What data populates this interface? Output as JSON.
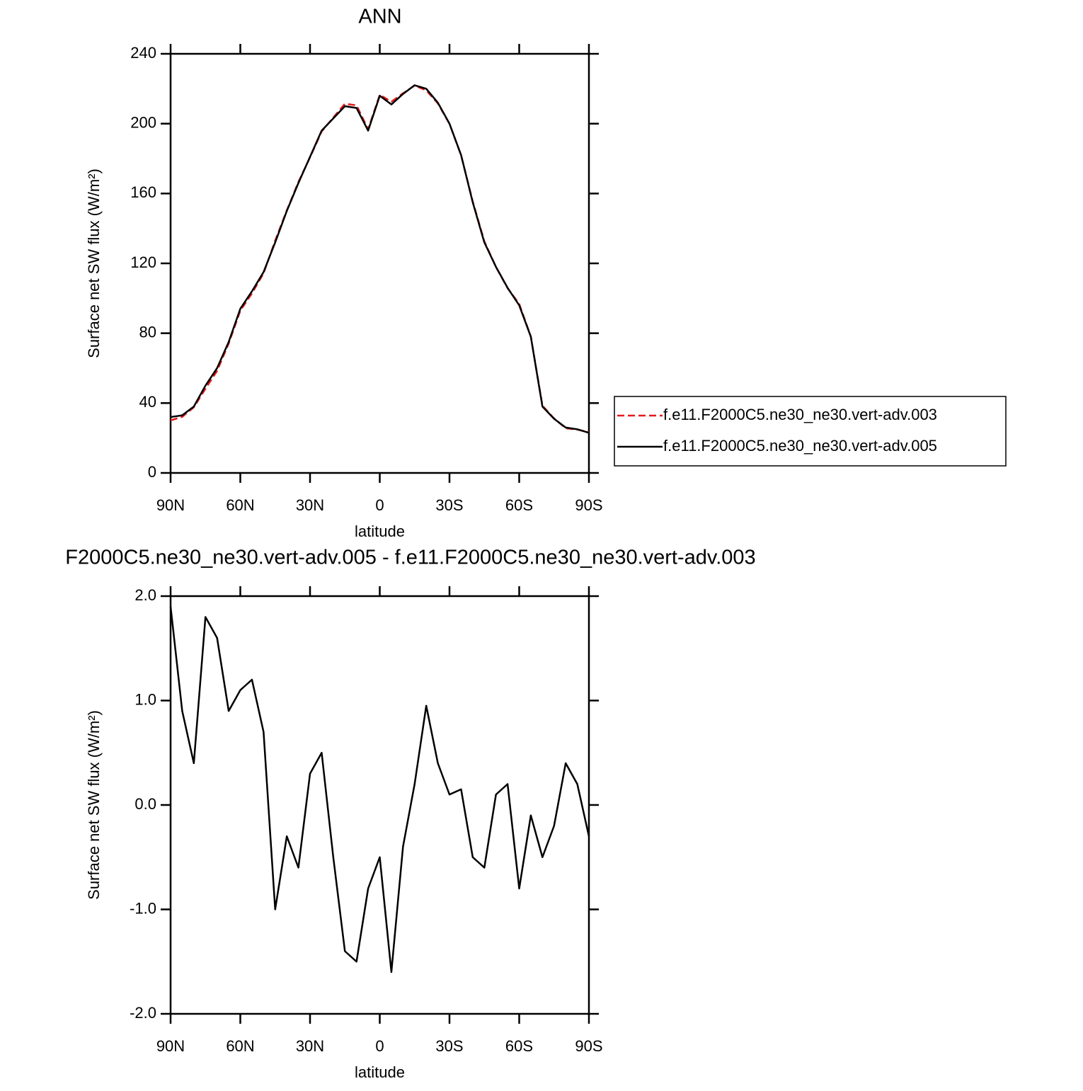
{
  "chart_data": [
    {
      "type": "line",
      "title": "ANN",
      "xlabel": "latitude",
      "ylabel": "Surface net SW flux (W/m²)",
      "x": [
        90,
        85,
        80,
        75,
        70,
        65,
        60,
        55,
        50,
        45,
        40,
        35,
        30,
        25,
        20,
        15,
        10,
        5,
        0,
        -5,
        -10,
        -15,
        -20,
        -25,
        -30,
        -35,
        -40,
        -45,
        -50,
        -55,
        -60,
        -65,
        -70,
        -75,
        -80,
        -85,
        -90
      ],
      "xlim": [
        90,
        -90
      ],
      "xticks": [
        {
          "value": 90,
          "label": "90N"
        },
        {
          "value": 60,
          "label": "60N"
        },
        {
          "value": 30,
          "label": "30N"
        },
        0,
        {
          "value": -30,
          "label": "30S"
        },
        {
          "value": -60,
          "label": "60S"
        },
        {
          "value": -90,
          "label": "90S"
        }
      ],
      "ylim": [
        0,
        240
      ],
      "yticks": [
        0,
        40,
        80,
        120,
        160,
        200,
        240
      ],
      "legend": "outside-right",
      "series": [
        {
          "name": "f.e11.F2000C5.ne30_ne30.vert-adv.003",
          "color": "#e41a1c",
          "linestyle": "dashed",
          "values": [
            30.1,
            32.1,
            37.6,
            48.2,
            58.4,
            74.1,
            92.9,
            102.8,
            114.3,
            133,
            150.3,
            166.6,
            180.7,
            195.5,
            203.5,
            211.4,
            210.5,
            196.8,
            216.5,
            212.6,
            217.4,
            221.8,
            219.05,
            211.6,
            199.9,
            181.85,
            155.5,
            132.6,
            117.9,
            105.8,
            96.8,
            78.1,
            38.5,
            31.2,
            25.6,
            24.8,
            23.3
          ]
        },
        {
          "name": "f.e11.F2000C5.ne30_ne30.vert-adv.005",
          "color": "#000000",
          "linestyle": "solid",
          "values": [
            32,
            33,
            38,
            50,
            60,
            75,
            94,
            104,
            115,
            132,
            150,
            166,
            181,
            196,
            203,
            210,
            209,
            196,
            216,
            211,
            217,
            222,
            220,
            212,
            200,
            182,
            155,
            132,
            118,
            106,
            96,
            78,
            38,
            31,
            26,
            25,
            23
          ]
        }
      ]
    },
    {
      "type": "line",
      "title": "F2000C5.ne30_ne30.vert-adv.005 - f.e11.F2000C5.ne30_ne30.vert-adv.003",
      "xlabel": "latitude",
      "ylabel": "Surface net SW flux (W/m²)",
      "x": [
        90,
        85,
        80,
        75,
        70,
        65,
        60,
        55,
        50,
        45,
        40,
        35,
        30,
        25,
        20,
        15,
        10,
        5,
        0,
        -5,
        -10,
        -15,
        -20,
        -25,
        -30,
        -35,
        -40,
        -45,
        -50,
        -55,
        -60,
        -65,
        -70,
        -75,
        -80,
        -85,
        -90
      ],
      "xlim": [
        90,
        -90
      ],
      "xticks": [
        {
          "value": 90,
          "label": "90N"
        },
        {
          "value": 60,
          "label": "60N"
        },
        {
          "value": 30,
          "label": "30N"
        },
        0,
        {
          "value": -30,
          "label": "30S"
        },
        {
          "value": -60,
          "label": "60S"
        },
        {
          "value": -90,
          "label": "90S"
        }
      ],
      "ylim": [
        -2,
        2
      ],
      "yticks": [
        {
          "value": -2,
          "label": "-2.0"
        },
        {
          "value": -1,
          "label": "-1.0"
        },
        {
          "value": 0,
          "label": "0.0"
        },
        {
          "value": 1,
          "label": "1.0"
        },
        {
          "value": 2,
          "label": "2.0"
        }
      ],
      "series": [
        {
          "color": "#000000",
          "linestyle": "solid",
          "values": [
            1.9,
            0.9,
            0.4,
            1.8,
            1.6,
            0.9,
            1.1,
            1.2,
            0.7,
            -1.0,
            -0.3,
            -0.6,
            0.3,
            0.5,
            -0.5,
            -1.4,
            -1.5,
            -0.8,
            -0.5,
            -1.6,
            -0.4,
            0.2,
            0.95,
            0.4,
            0.1,
            0.15,
            -0.5,
            -0.6,
            0.1,
            0.2,
            -0.8,
            -0.1,
            -0.5,
            -0.2,
            0.4,
            0.2,
            -0.3
          ]
        }
      ]
    }
  ]
}
